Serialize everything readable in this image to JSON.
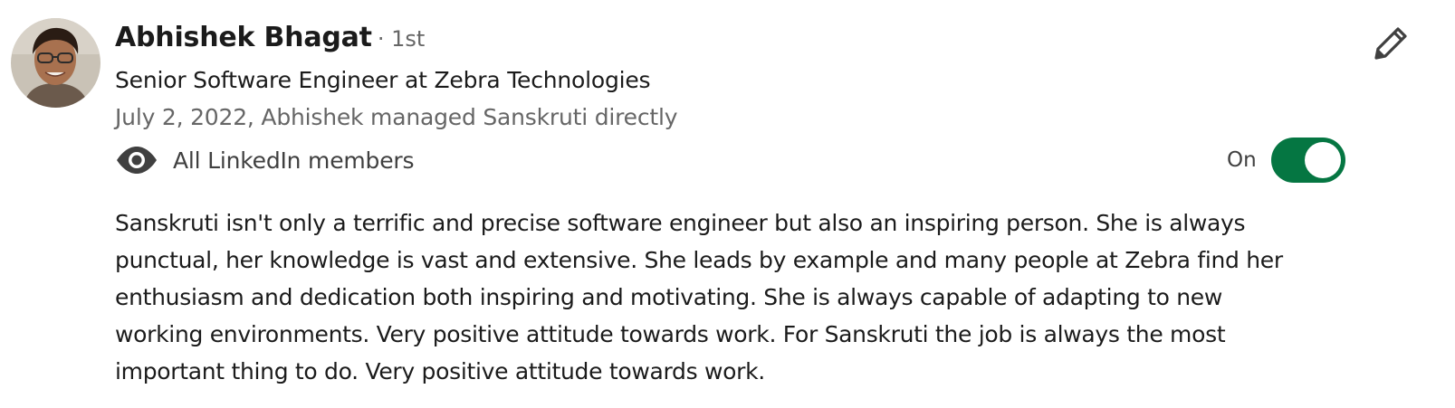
{
  "recommendation": {
    "author": {
      "name": "Abhishek Bhagat",
      "degree": "· 1st",
      "headline": "Senior Software Engineer at Zebra Technologies",
      "relationship": "July 2, 2022, Abhishek managed Sanskruti directly"
    },
    "visibility": {
      "label": "All LinkedIn members",
      "icon": "eye-icon"
    },
    "toggle": {
      "state_label": "On",
      "on": true,
      "color": "#057642"
    },
    "edit_icon": "pencil-icon",
    "text_lines": [
      "Sanskruti isn't only a terrific and precise software engineer but also an inspiring person. She is always",
      "punctual, her knowledge is vast and extensive. She leads by example and many people at Zebra find her",
      "enthusiasm and dedication both inspiring and motivating. She is always capable of adapting to new",
      "working environments. Very positive attitude towards work. For Sanskruti the job is always the most",
      "important thing to do. Very positive attitude towards work."
    ]
  }
}
